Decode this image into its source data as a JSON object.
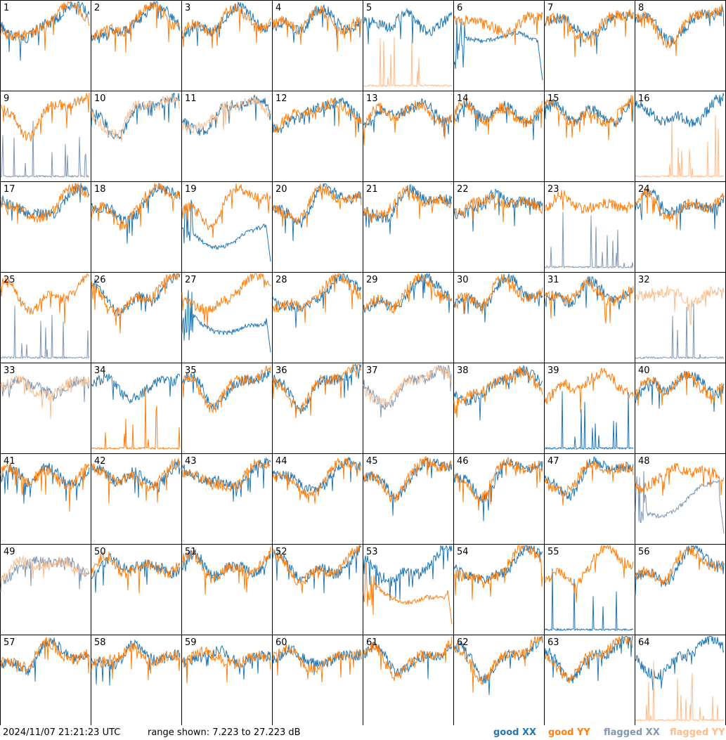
{
  "footer": {
    "timestamp": "2024/11/07 21:21:23 UTC",
    "range": "range shown: 7.223 to 27.223 dB"
  },
  "legend": {
    "good_xx": "good XX",
    "good_yy": "good YY",
    "flagged_xx": "flagged XX",
    "flagged_yy": "flagged YY"
  },
  "colors": {
    "good_xx": "#1f77b4",
    "good_yy": "#ff7f0e",
    "flagged_xx": "#7f98b3",
    "flagged_yy": "#fdbd8b",
    "border": "#000000"
  },
  "chart_data": {
    "type": "line",
    "layout": "8x8 small multiples",
    "ylim_db": [
      7.223,
      27.223
    ],
    "panels": [
      {
        "label": "1",
        "xx": "good",
        "yy": "good",
        "shape": "normal"
      },
      {
        "label": "2",
        "xx": "good",
        "yy": "good",
        "shape": "normal"
      },
      {
        "label": "3",
        "xx": "good",
        "yy": "good",
        "shape": "normal"
      },
      {
        "label": "4",
        "xx": "good",
        "yy": "good",
        "shape": "normal"
      },
      {
        "label": "5",
        "xx": "good",
        "yy": "flagged",
        "shape": "yy_dead"
      },
      {
        "label": "6",
        "xx": "good",
        "yy": "good",
        "shape": "xx_low"
      },
      {
        "label": "7",
        "xx": "good",
        "yy": "good",
        "shape": "normal"
      },
      {
        "label": "8",
        "xx": "good",
        "yy": "good",
        "shape": "normal"
      },
      {
        "label": "9",
        "xx": "flagged",
        "yy": "good",
        "shape": "xx_dead"
      },
      {
        "label": "10",
        "xx": "good",
        "yy": "flagged",
        "shape": "normal"
      },
      {
        "label": "11",
        "xx": "good",
        "yy": "flagged",
        "shape": "normal"
      },
      {
        "label": "12",
        "xx": "good",
        "yy": "good",
        "shape": "normal"
      },
      {
        "label": "13",
        "xx": "good",
        "yy": "good",
        "shape": "normal"
      },
      {
        "label": "14",
        "xx": "good",
        "yy": "good",
        "shape": "normal"
      },
      {
        "label": "15",
        "xx": "good",
        "yy": "good",
        "shape": "normal"
      },
      {
        "label": "16",
        "xx": "good",
        "yy": "flagged",
        "shape": "yy_dead"
      },
      {
        "label": "17",
        "xx": "good",
        "yy": "good",
        "shape": "normal"
      },
      {
        "label": "18",
        "xx": "good",
        "yy": "good",
        "shape": "normal"
      },
      {
        "label": "19",
        "xx": "good",
        "yy": "good",
        "shape": "xx_low"
      },
      {
        "label": "20",
        "xx": "good",
        "yy": "good",
        "shape": "normal"
      },
      {
        "label": "21",
        "xx": "good",
        "yy": "good",
        "shape": "normal"
      },
      {
        "label": "22",
        "xx": "good",
        "yy": "good",
        "shape": "normal"
      },
      {
        "label": "23",
        "xx": "flagged",
        "yy": "good",
        "shape": "xx_dead"
      },
      {
        "label": "24",
        "xx": "good",
        "yy": "good",
        "shape": "normal"
      },
      {
        "label": "25",
        "xx": "flagged",
        "yy": "good",
        "shape": "xx_dead"
      },
      {
        "label": "26",
        "xx": "good",
        "yy": "good",
        "shape": "normal"
      },
      {
        "label": "27",
        "xx": "good",
        "yy": "good",
        "shape": "xx_low"
      },
      {
        "label": "28",
        "xx": "good",
        "yy": "good",
        "shape": "normal"
      },
      {
        "label": "29",
        "xx": "good",
        "yy": "good",
        "shape": "normal"
      },
      {
        "label": "30",
        "xx": "good",
        "yy": "good",
        "shape": "normal"
      },
      {
        "label": "31",
        "xx": "good",
        "yy": "good",
        "shape": "normal"
      },
      {
        "label": "32",
        "xx": "flagged",
        "yy": "flagged",
        "shape": "xx_dead"
      },
      {
        "label": "33",
        "xx": "flagged",
        "yy": "flagged",
        "shape": "normal"
      },
      {
        "label": "34",
        "xx": "good",
        "yy": "good",
        "shape": "yy_dead"
      },
      {
        "label": "35",
        "xx": "good",
        "yy": "good",
        "shape": "normal"
      },
      {
        "label": "36",
        "xx": "good",
        "yy": "good",
        "shape": "normal"
      },
      {
        "label": "37",
        "xx": "flagged",
        "yy": "flagged",
        "shape": "normal"
      },
      {
        "label": "38",
        "xx": "good",
        "yy": "good",
        "shape": "normal"
      },
      {
        "label": "39",
        "xx": "good",
        "yy": "good",
        "shape": "xx_dead"
      },
      {
        "label": "40",
        "xx": "good",
        "yy": "good",
        "shape": "normal"
      },
      {
        "label": "41",
        "xx": "good",
        "yy": "good",
        "shape": "normal"
      },
      {
        "label": "42",
        "xx": "good",
        "yy": "good",
        "shape": "normal"
      },
      {
        "label": "43",
        "xx": "good",
        "yy": "good",
        "shape": "normal"
      },
      {
        "label": "44",
        "xx": "good",
        "yy": "good",
        "shape": "normal"
      },
      {
        "label": "45",
        "xx": "good",
        "yy": "good",
        "shape": "normal"
      },
      {
        "label": "46",
        "xx": "good",
        "yy": "good",
        "shape": "normal"
      },
      {
        "label": "47",
        "xx": "good",
        "yy": "good",
        "shape": "normal"
      },
      {
        "label": "48",
        "xx": "flagged",
        "yy": "good",
        "shape": "xx_low"
      },
      {
        "label": "49",
        "xx": "flagged",
        "yy": "flagged",
        "shape": "normal"
      },
      {
        "label": "50",
        "xx": "good",
        "yy": "good",
        "shape": "normal"
      },
      {
        "label": "51",
        "xx": "good",
        "yy": "good",
        "shape": "normal"
      },
      {
        "label": "52",
        "xx": "good",
        "yy": "good",
        "shape": "normal"
      },
      {
        "label": "53",
        "xx": "good",
        "yy": "good",
        "shape": "yy_low"
      },
      {
        "label": "54",
        "xx": "good",
        "yy": "good",
        "shape": "normal"
      },
      {
        "label": "55",
        "xx": "good",
        "yy": "good",
        "shape": "xx_dead"
      },
      {
        "label": "56",
        "xx": "good",
        "yy": "good",
        "shape": "normal"
      },
      {
        "label": "57",
        "xx": "good",
        "yy": "good",
        "shape": "normal"
      },
      {
        "label": "58",
        "xx": "good",
        "yy": "good",
        "shape": "normal"
      },
      {
        "label": "59",
        "xx": "good",
        "yy": "good",
        "shape": "normal"
      },
      {
        "label": "60",
        "xx": "good",
        "yy": "good",
        "shape": "normal"
      },
      {
        "label": "61",
        "xx": "good",
        "yy": "good",
        "shape": "normal"
      },
      {
        "label": "62",
        "xx": "good",
        "yy": "good",
        "shape": "normal"
      },
      {
        "label": "63",
        "xx": "good",
        "yy": "good",
        "shape": "normal"
      },
      {
        "label": "64",
        "xx": "good",
        "yy": "flagged",
        "shape": "yy_dead"
      }
    ]
  }
}
